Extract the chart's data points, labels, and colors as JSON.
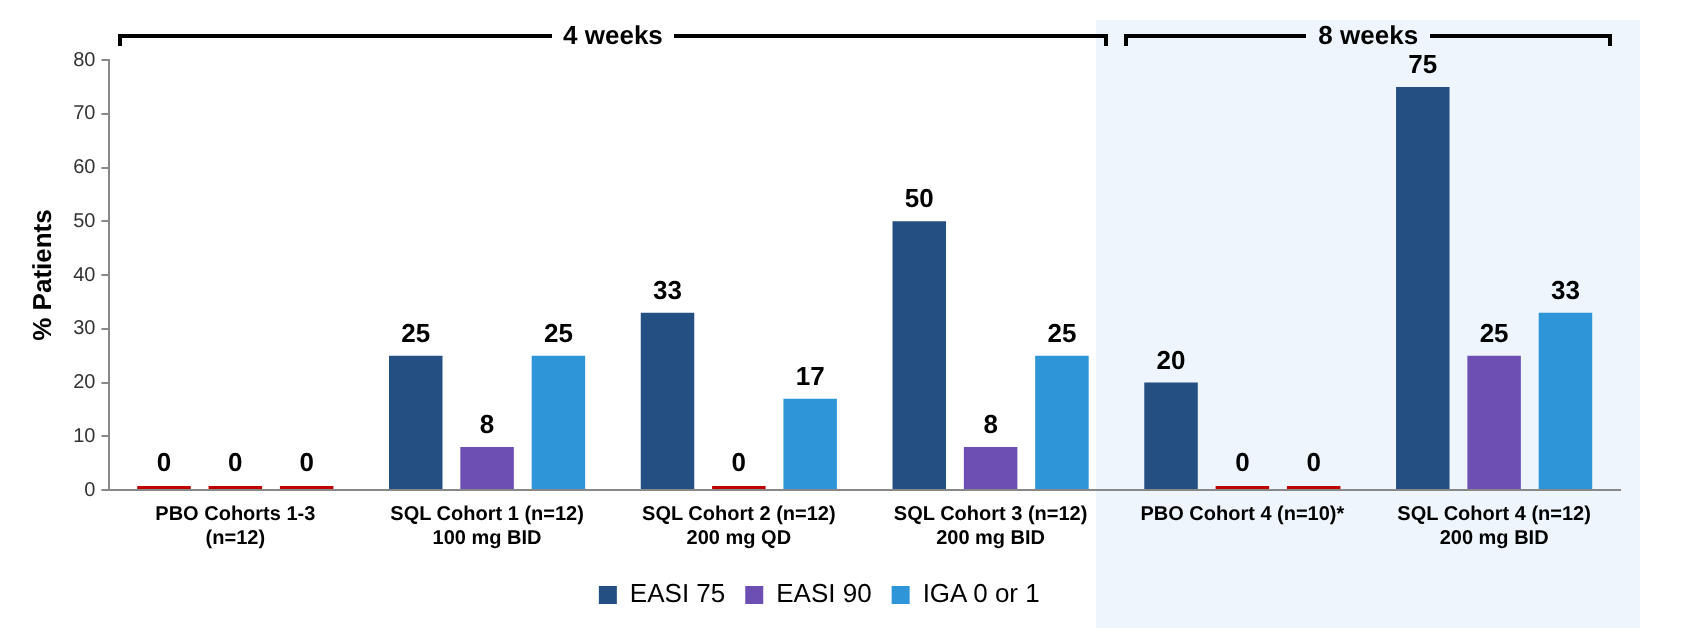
{
  "chart_data": {
    "type": "bar",
    "categories": [
      "PBO Cohorts 1-3\n(n=12)",
      "SQL Cohort 1 (n=12)\n100 mg BID",
      "SQL Cohort 2 (n=12)\n200 mg QD",
      "SQL Cohort 3 (n=12)\n200 mg BID",
      "PBO Cohort 4 (n=10)*",
      "SQL Cohort 4 (n=12)\n200 mg BID"
    ],
    "series": [
      {
        "name": "EASI 75",
        "color": "#244f82",
        "colors": [
          "#c00000",
          "#244f82",
          "#244f82",
          "#244f82",
          "#244f82",
          "#244f82"
        ],
        "values": [
          0,
          25,
          33,
          50,
          20,
          75
        ]
      },
      {
        "name": "EASI 90",
        "color": "#6d4fb3",
        "colors": [
          "#c00000",
          "#6d4fb3",
          "#c00000",
          "#6d4fb3",
          "#c00000",
          "#6d4fb3"
        ],
        "values": [
          0,
          8,
          0,
          8,
          0,
          25
        ]
      },
      {
        "name": "IGA 0 or 1",
        "color": "#2e95d9",
        "colors": [
          "#c00000",
          "#2e95d9",
          "#2e95d9",
          "#2e95d9",
          "#c00000",
          "#2e95d9"
        ],
        "values": [
          0,
          25,
          17,
          25,
          0,
          33
        ]
      }
    ],
    "ylabel": "% Patients",
    "ylim": [
      0,
      80
    ],
    "yticks": [
      0,
      10,
      20,
      30,
      40,
      50,
      60,
      70,
      80
    ],
    "annotations": [
      "4 weeks",
      "8 weeks"
    ],
    "data_labels": true,
    "grid": false,
    "legend": "bottom"
  }
}
